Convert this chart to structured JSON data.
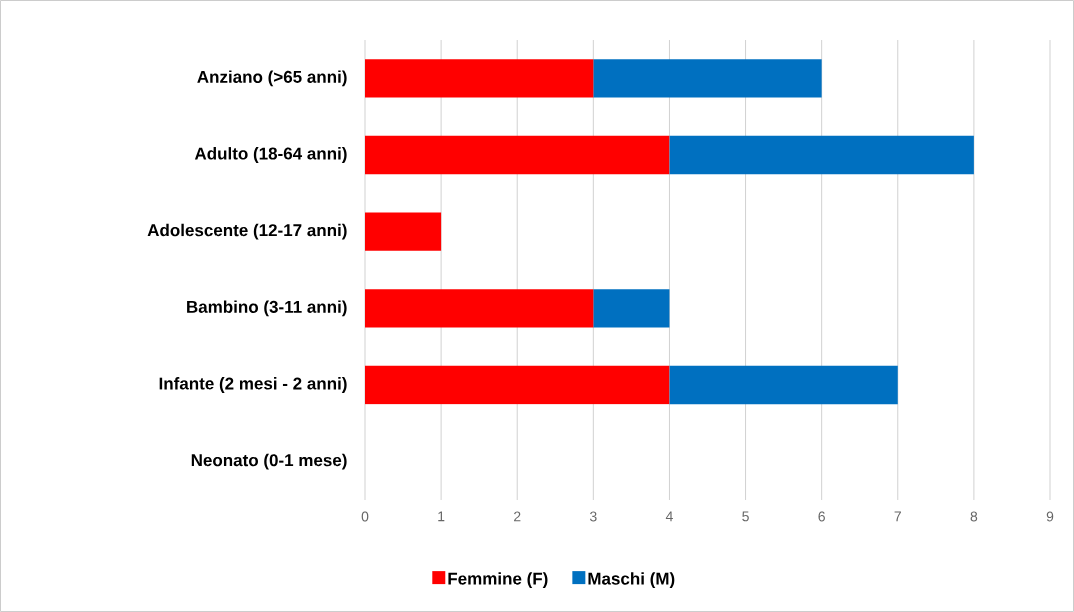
{
  "chart_data": {
    "type": "bar",
    "orientation": "horizontal",
    "stacked": true,
    "categories": [
      "Anziano (>65 anni)",
      "Adulto (18-64 anni)",
      "Adolescente (12-17 anni)",
      "Bambino (3-11 anni)",
      "Infante (2 mesi - 2 anni)",
      "Neonato (0-1 mese)"
    ],
    "series": [
      {
        "name": "Femmine (F)",
        "color": "#ff0000",
        "values": [
          3,
          4,
          1,
          3,
          4,
          0
        ]
      },
      {
        "name": "Maschi (M)",
        "color": "#0070c0",
        "values": [
          3,
          4,
          0,
          1,
          3,
          0
        ]
      }
    ],
    "xlim": [
      0,
      9
    ],
    "xticks": [
      0,
      1,
      2,
      3,
      4,
      5,
      6,
      7,
      8,
      9
    ],
    "grid": "x",
    "legend": "bottom"
  }
}
